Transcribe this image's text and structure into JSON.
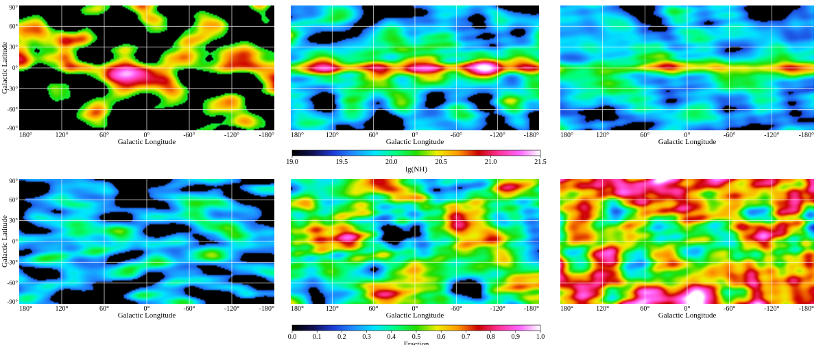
{
  "figure": {
    "x_axis_label": "Galactic Longitude",
    "y_axis_label": "Galactic Latitude",
    "x_ticks": [
      "180°",
      "120°",
      "60°",
      "0°",
      "-60°",
      "-120°",
      "-180°"
    ],
    "y_ticks": [
      "90°",
      "60°",
      "30°",
      "0°",
      "-30°",
      "-60°",
      "-90°"
    ],
    "grid": "white lines every 60° longitude and 30° latitude",
    "colors": {
      "grid": "#ffffff",
      "no_data": "#000000",
      "colormap": [
        "#000000",
        "#101050",
        "#1d3cd8",
        "#1e90ff",
        "#00e5ff",
        "#00ff80",
        "#22dd00",
        "#eeee00",
        "#ff9900",
        "#cc0000",
        "#ff3399",
        "#ff66ff",
        "#ffffff"
      ]
    }
  },
  "colorbars": [
    {
      "label": "lg(NH)",
      "ticks": [
        "19.0",
        "19.5",
        "20.0",
        "20.5",
        "21.0",
        "21.5"
      ],
      "range": [
        19.0,
        21.5
      ]
    },
    {
      "label": "Fraction",
      "ticks": [
        "0.0",
        "0.1",
        "0.2",
        "0.3",
        "0.4",
        "0.5",
        "0.6",
        "0.7",
        "0.8",
        "0.9",
        "1.0"
      ],
      "range": [
        0.0,
        1.0
      ]
    }
  ],
  "chart_data": {
    "type": "heatmap",
    "panel_grid": [
      2,
      3
    ],
    "projection": "all-sky, galactic coordinates",
    "xlim": [
      180,
      -180
    ],
    "ylim": [
      -90,
      90
    ],
    "rows": [
      {
        "colorbar": "lg(NH)",
        "panels": 3
      },
      {
        "colorbar": "Fraction",
        "panels": 3
      }
    ]
  }
}
